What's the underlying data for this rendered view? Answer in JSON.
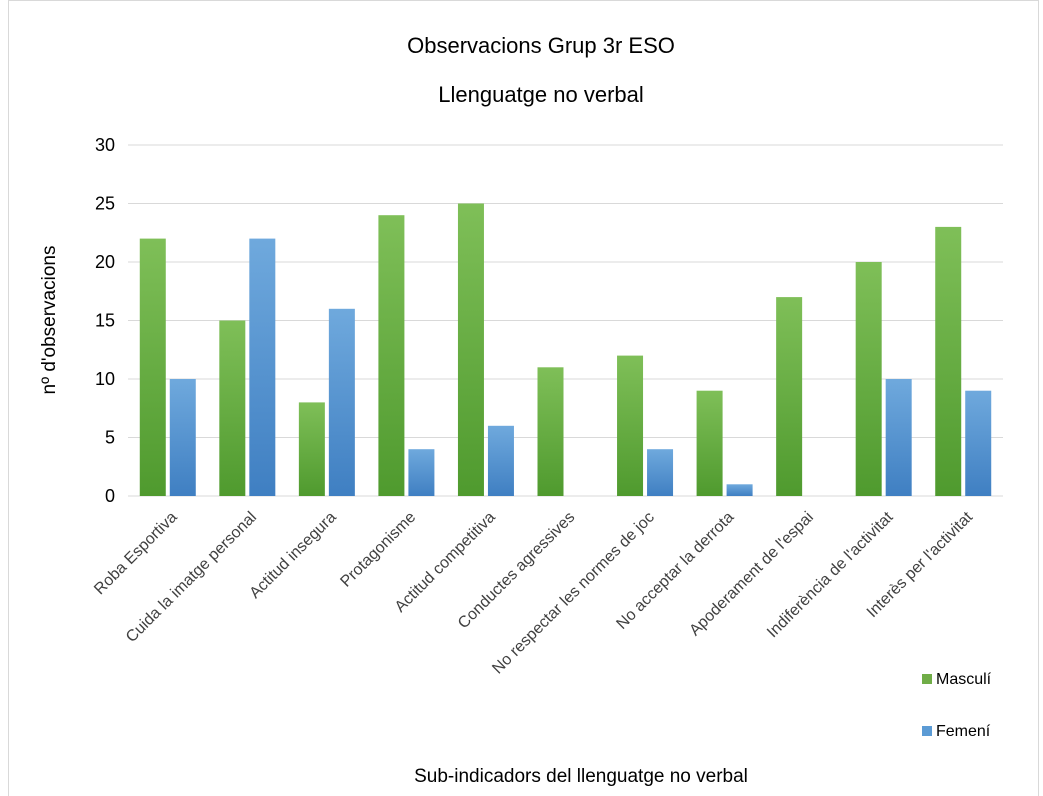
{
  "chart_data": {
    "type": "bar",
    "title": "Observacions Grup 3r ESO",
    "subtitle": "Llenguatge no verbal",
    "xlabel": "Sub-indicadors del llenguatge no verbal",
    "ylabel": "nº d'observacions",
    "ylim": [
      0,
      30
    ],
    "yticks": [
      0,
      5,
      10,
      15,
      20,
      25,
      30
    ],
    "grid": true,
    "legend_position": "right-bottom",
    "categories": [
      "Roba Esportiva",
      "Cuida la imatge personal",
      "Actitud insegura",
      "Protagonisme",
      "Actitud competitiva",
      "Conductes agressives",
      "No respectar les normes de joc",
      "No acceptar la derrota",
      "Apoderament de l'espai",
      "Indiferència de l'activitat",
      "Interès per l'activitat"
    ],
    "series": [
      {
        "name": "Masculí",
        "color": "#70ad47",
        "values": [
          22,
          15,
          8,
          24,
          25,
          11,
          12,
          9,
          17,
          20,
          23
        ]
      },
      {
        "name": "Femení",
        "color": "#5b9bd5",
        "values": [
          10,
          22,
          16,
          4,
          6,
          0,
          4,
          1,
          0,
          10,
          9
        ]
      }
    ]
  }
}
